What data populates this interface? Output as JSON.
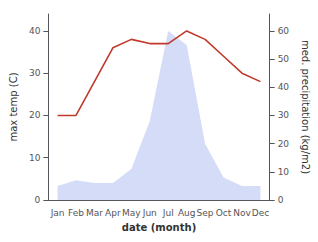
{
  "chart_data": {
    "type": "line",
    "xlabel": "date (month)",
    "ylabel": "max temp (C)",
    "y2label": "med. precipitation (kg/m2)",
    "categories": [
      "Jan",
      "Feb",
      "Mar",
      "Apr",
      "May",
      "Jun",
      "Jul",
      "Aug",
      "Sep",
      "Oct",
      "Nov",
      "Dec"
    ],
    "series": [
      {
        "type": "area",
        "color": "#c5d0f5",
        "axis": "y2",
        "values": [
          5,
          7,
          6,
          6,
          11,
          28,
          60,
          55,
          20,
          8,
          5,
          5
        ]
      },
      {
        "type": "line",
        "color": "#c0392b",
        "values": [
          20,
          20,
          28,
          36,
          38,
          37,
          37,
          40,
          38,
          34,
          30,
          28
        ]
      }
    ],
    "ylim": [
      0,
      44
    ],
    "yticks": [
      0,
      10,
      20,
      30,
      40
    ],
    "y2lim": [
      0,
      66
    ],
    "y2ticks": [
      0,
      10,
      20,
      30,
      40,
      50,
      60
    ],
    "grid": false
  }
}
